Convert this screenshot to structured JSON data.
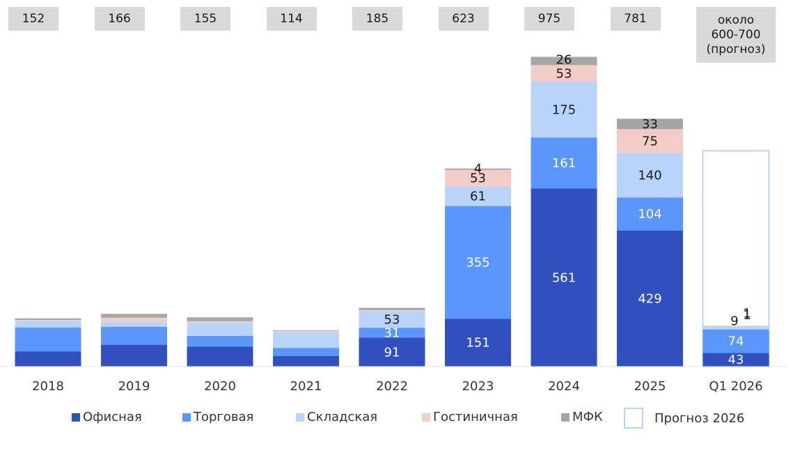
{
  "chart_data": {
    "type": "bar",
    "stacked": true,
    "categories": [
      "2018",
      "2019",
      "2020",
      "2021",
      "2022",
      "2023",
      "2024",
      "2025",
      "Q1 2026"
    ],
    "totals": [
      "152",
      "166",
      "155",
      "114",
      "185",
      "623",
      "975",
      "781",
      "около\n600-700\n(прогноз)"
    ],
    "series": [
      {
        "name": "Офисная",
        "color": "#3050c0",
        "values": [
          48,
          68,
          63,
          33,
          91,
          151,
          561,
          429,
          43
        ]
      },
      {
        "name": "Торговая",
        "color": "#5b97fb",
        "values": [
          75,
          57,
          34,
          26,
          31,
          355,
          161,
          104,
          74
        ]
      },
      {
        "name": "Складская",
        "color": "#b9d3fb",
        "values": [
          20,
          15,
          41,
          49,
          53,
          61,
          175,
          140,
          9
        ]
      },
      {
        "name": "Гостиничная",
        "color": "#f2ccc6",
        "values": [
          4,
          14,
          5,
          4,
          3,
          53,
          53,
          75,
          1
        ]
      },
      {
        "name": "МФК",
        "color": "#a6a6a6",
        "values": [
          5,
          12,
          12,
          2,
          7,
          4,
          26,
          33,
          1
        ]
      }
    ],
    "forecast": {
      "name": "Прогноз 2026",
      "category": "Q1 2026",
      "value": 680,
      "border_color": "#b9d3fb"
    },
    "data_labels": [
      [
        "",
        "",
        "",
        "",
        "91",
        "151",
        "561",
        "429",
        "43"
      ],
      [
        "",
        "",
        "",
        "",
        "31",
        "355",
        "161",
        "104",
        "74"
      ],
      [
        "",
        "",
        "",
        "",
        "53",
        "61",
        "175",
        "140",
        "9"
      ],
      [
        "",
        "",
        "",
        "",
        "",
        "53",
        "53",
        "75",
        "1"
      ],
      [
        "",
        "",
        "",
        "",
        "",
        "4",
        "26",
        "33",
        "1"
      ]
    ],
    "ylim": [
      0,
      975
    ],
    "grid": false,
    "legend_position": "bottom"
  }
}
